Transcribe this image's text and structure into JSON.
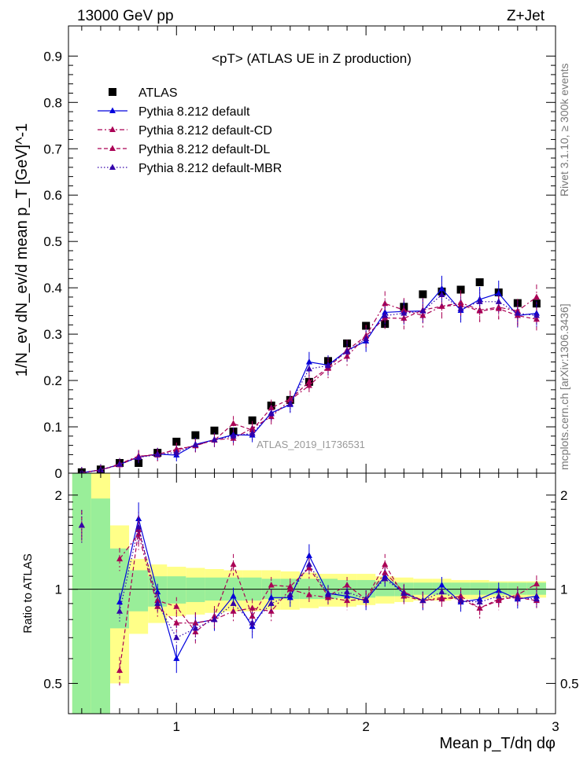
{
  "header": {
    "left": "13000 GeV pp",
    "right": "Z+Jet"
  },
  "side_labels": {
    "top": "Rivet 3.1.10, ≥ 300k events",
    "bottom": "mcplots.cern.ch [arXiv:1306.3436]"
  },
  "chart_data": [
    {
      "type": "scatter",
      "panel": "main",
      "title": "<pT> (ATLAS UE in Z production)",
      "watermark": "ATLAS_2019_I1736531",
      "xlabel": "Mean p_T/dη dφ",
      "ylabel": "1/N_ev dN_ev/d mean p_T [GeV]^-1",
      "xlim": [
        0.43,
        3.0
      ],
      "ylim": [
        0,
        0.965
      ],
      "yticks": [
        0,
        0.1,
        0.2,
        0.3,
        0.4,
        0.5,
        0.6,
        0.7,
        0.8,
        0.9
      ],
      "ytick_labels": [
        "0",
        "0.1",
        "0.2",
        "0.3",
        "0.4",
        "0.5",
        "0.6",
        "0.7",
        "0.8",
        "0.9"
      ],
      "legend_position": "top-left",
      "x": [
        0.5,
        0.6,
        0.7,
        0.8,
        0.9,
        1.0,
        1.1,
        1.2,
        1.3,
        1.4,
        1.5,
        1.6,
        1.7,
        1.8,
        1.9,
        2.0,
        2.1,
        2.2,
        2.3,
        2.4,
        2.5,
        2.6,
        2.7,
        2.8,
        2.9
      ],
      "series": [
        {
          "name": "ATLAS",
          "color": "#000000",
          "marker": "square",
          "line": "none",
          "values": [
            0.002,
            0.008,
            0.022,
            0.022,
            0.044,
            0.068,
            0.082,
            0.092,
            0.09,
            0.114,
            0.146,
            0.158,
            0.197,
            0.242,
            0.28,
            0.318,
            0.322,
            0.359,
            0.386,
            0.392,
            0.396,
            0.412,
            0.39,
            0.367,
            0.366
          ]
        },
        {
          "name": "Pythia 8.212 default",
          "color": "#0000dd",
          "marker": "triangle",
          "line": "solid",
          "values": [
            0.001,
            0.007,
            0.019,
            0.035,
            0.041,
            0.039,
            0.062,
            0.072,
            0.083,
            0.082,
            0.13,
            0.148,
            0.24,
            0.233,
            0.265,
            0.285,
            0.347,
            0.349,
            0.35,
            0.398,
            0.351,
            0.375,
            0.388,
            0.34,
            0.345
          ]
        },
        {
          "name": "Pythia 8.212 default-CD",
          "color": "#aa0055",
          "marker": "triangle",
          "line": "dashdot",
          "values": [
            0.001,
            0.007,
            0.02,
            0.037,
            0.039,
            0.052,
            0.059,
            0.072,
            0.075,
            0.097,
            0.122,
            0.158,
            0.189,
            0.226,
            0.252,
            0.296,
            0.366,
            0.352,
            0.34,
            0.36,
            0.368,
            0.352,
            0.358,
            0.35,
            0.38
          ]
        },
        {
          "name": "Pythia 8.212 default-DL",
          "color": "#aa0055",
          "marker": "triangle",
          "line": "dashed",
          "values": [
            0.001,
            0.007,
            0.018,
            0.036,
            0.041,
            0.05,
            0.06,
            0.071,
            0.107,
            0.093,
            0.141,
            0.16,
            0.197,
            0.228,
            0.265,
            0.296,
            0.335,
            0.334,
            0.352,
            0.36,
            0.363,
            0.35,
            0.355,
            0.34,
            0.332
          ]
        },
        {
          "name": "Pythia 8.212 default-MBR",
          "color": "#3300aa",
          "marker": "triangle",
          "line": "dotted",
          "values": [
            0.001,
            0.007,
            0.019,
            0.034,
            0.04,
            0.045,
            0.061,
            0.072,
            0.08,
            0.086,
            0.128,
            0.15,
            0.225,
            0.232,
            0.262,
            0.29,
            0.34,
            0.345,
            0.35,
            0.385,
            0.355,
            0.37,
            0.37,
            0.345,
            0.34
          ]
        }
      ]
    },
    {
      "type": "scatter",
      "panel": "ratio",
      "ylabel": "Ratio to ATLAS",
      "xlabel": "Mean p_T/dη dφ",
      "xlim": [
        0.43,
        3.0
      ],
      "ylim": [
        0.4,
        2.35
      ],
      "yscale": "log",
      "yticks": [
        0.5,
        1,
        2
      ],
      "ytick_labels": [
        "0.5",
        "1",
        "2"
      ],
      "xticks": [
        1,
        2,
        3
      ],
      "xtick_labels": [
        "1",
        "2",
        "3"
      ],
      "x": [
        0.5,
        0.6,
        0.7,
        0.8,
        0.9,
        1.0,
        1.1,
        1.2,
        1.3,
        1.4,
        1.5,
        1.6,
        1.7,
        1.8,
        1.9,
        2.0,
        2.1,
        2.2,
        2.3,
        2.4,
        2.5,
        2.6,
        2.7,
        2.8,
        2.9
      ],
      "band_inner": [
        3.0,
        1.95,
        1.35,
        1.15,
        1.1,
        1.1,
        1.09,
        1.09,
        1.09,
        1.09,
        1.08,
        1.08,
        1.08,
        1.08,
        1.07,
        1.07,
        1.06,
        1.05,
        1.05,
        1.05,
        1.05,
        1.05,
        1.05,
        1.05,
        1.05
      ],
      "band_outer": [
        3.0,
        3.0,
        1.6,
        1.25,
        1.2,
        1.18,
        1.17,
        1.16,
        1.15,
        1.15,
        1.15,
        1.14,
        1.13,
        1.12,
        1.12,
        1.12,
        1.1,
        1.09,
        1.08,
        1.08,
        1.07,
        1.07,
        1.06,
        1.06,
        1.06
      ],
      "band_inner_low": [
        0.3,
        0.3,
        0.75,
        0.85,
        0.88,
        0.9,
        0.91,
        0.92,
        0.92,
        0.92,
        0.93,
        0.93,
        0.93,
        0.93,
        0.94,
        0.94,
        0.95,
        0.95,
        0.96,
        0.96,
        0.96,
        0.96,
        0.96,
        0.96,
        0.96
      ],
      "band_outer_low": [
        0.3,
        0.3,
        0.5,
        0.72,
        0.78,
        0.82,
        0.83,
        0.84,
        0.85,
        0.85,
        0.86,
        0.86,
        0.87,
        0.88,
        0.88,
        0.89,
        0.9,
        0.91,
        0.92,
        0.92,
        0.93,
        0.93,
        0.94,
        0.94,
        0.94
      ],
      "series": [
        {
          "name": "Pythia 8.212 default",
          "color": "#0000dd",
          "marker": "triangle",
          "line": "solid",
          "values": [
            null,
            null,
            0.91,
            1.68,
            0.98,
            0.6,
            0.78,
            0.8,
            0.95,
            0.76,
            0.94,
            0.94,
            1.28,
            0.97,
            0.95,
            0.92,
            1.1,
            0.97,
            0.92,
            1.03,
            0.91,
            0.93,
            0.99,
            0.93,
            0.95
          ]
        },
        {
          "name": "Pythia 8.212 default-CD",
          "color": "#aa0055",
          "marker": "triangle",
          "line": "dashdot",
          "values": [
            1.6,
            null,
            1.25,
            1.5,
            0.88,
            0.78,
            0.78,
            0.8,
            0.85,
            0.87,
            0.85,
            1.0,
            0.96,
            0.94,
            0.92,
            0.93,
            1.13,
            0.98,
            0.92,
            0.94,
            0.93,
            0.87,
            0.92,
            0.96,
            1.04
          ]
        },
        {
          "name": "Pythia 8.212 default-DL",
          "color": "#aa0055",
          "marker": "triangle",
          "line": "dashed",
          "values": [
            1.6,
            null,
            0.55,
            1.55,
            0.92,
            0.88,
            0.73,
            0.82,
            1.2,
            0.82,
            1.03,
            1.02,
            1.17,
            0.95,
            1.03,
            0.93,
            1.2,
            0.95,
            0.92,
            0.93,
            0.95,
            0.87,
            0.93,
            0.94,
            0.92
          ]
        },
        {
          "name": "Pythia 8.212 default-MBR",
          "color": "#3300aa",
          "marker": "triangle",
          "line": "dotted",
          "values": [
            1.6,
            null,
            0.85,
            1.58,
            0.9,
            0.7,
            0.75,
            0.8,
            0.9,
            0.78,
            0.9,
            0.96,
            1.2,
            0.96,
            0.98,
            0.93,
            1.08,
            0.97,
            0.92,
            0.98,
            0.92,
            0.91,
            0.95,
            0.94,
            0.93
          ]
        }
      ]
    }
  ]
}
